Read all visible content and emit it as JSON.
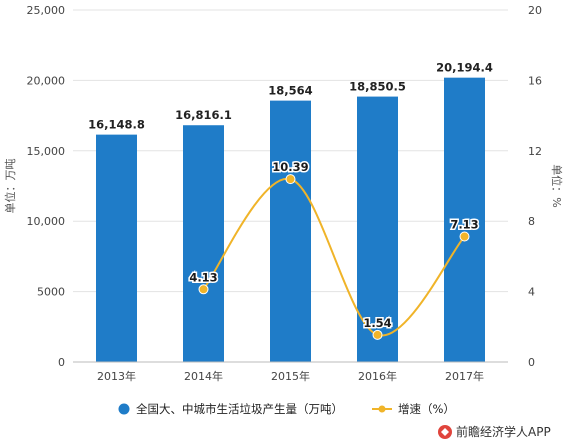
{
  "chart_data": {
    "type": "bar",
    "categories": [
      "2013年",
      "2014年",
      "2015年",
      "2016年",
      "2017年"
    ],
    "series": [
      {
        "name": "全国大、中城市生活垃圾产生量（万吨）",
        "type": "bar",
        "axis": "left",
        "values": [
          16148.8,
          16816.1,
          18564,
          18850.5,
          20194.4
        ],
        "labels": [
          "16,148.8",
          "16,816.1",
          "18,564",
          "18,850.5",
          "20,194.4"
        ],
        "color": "#1f7cc8"
      },
      {
        "name": "增速（%）",
        "type": "line",
        "axis": "right",
        "smooth": true,
        "values": [
          null,
          4.13,
          10.39,
          1.54,
          7.13
        ],
        "labels": [
          "",
          "4.13",
          "10.39",
          "1.54",
          "7.13"
        ],
        "color": "#f0b429"
      }
    ],
    "ylabel": "单位：万吨",
    "y2label": "单位：%",
    "ylim": [
      0,
      25000
    ],
    "y2lim": [
      0,
      20
    ],
    "yticks": [
      0,
      5000,
      10000,
      15000,
      20000,
      25000
    ],
    "yticklabels": [
      "0",
      "5000",
      "10,000",
      "15,000",
      "20,000",
      "25,000"
    ],
    "y2ticks": [
      0,
      4,
      8,
      12,
      16,
      20
    ],
    "y2ticklabels": [
      "0",
      "4",
      "8",
      "12",
      "16",
      "20"
    ],
    "grid": true,
    "legend_position": "bottom"
  },
  "watermark": {
    "text": "前瞻经济学人APP",
    "icon": "qianzhan-logo-icon"
  }
}
